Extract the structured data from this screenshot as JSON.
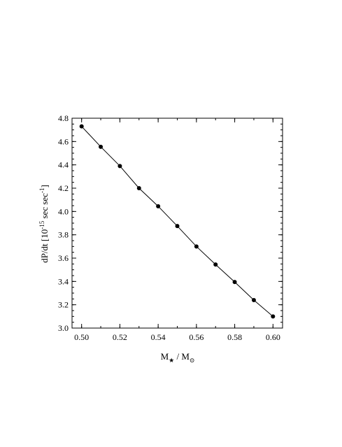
{
  "chart_data": {
    "type": "line",
    "x": [
      0.5,
      0.51,
      0.52,
      0.53,
      0.54,
      0.55,
      0.56,
      0.57,
      0.58,
      0.59,
      0.6
    ],
    "series": [
      {
        "values": [
          4.73,
          4.555,
          4.39,
          4.2,
          4.045,
          3.875,
          3.7,
          3.545,
          3.395,
          3.24,
          3.1
        ]
      }
    ],
    "xlim": [
      0.495,
      0.605
    ],
    "ylim": [
      3.0,
      4.8
    ],
    "xticks": [
      0.5,
      0.52,
      0.54,
      0.56,
      0.58,
      0.6
    ],
    "xtick_labels": [
      "0.50",
      "0.52",
      "0.54",
      "0.56",
      "0.58",
      "0.60"
    ],
    "xminor_step": 0.01,
    "yticks": [
      3.0,
      3.2,
      3.4,
      3.6,
      3.8,
      4.0,
      4.2,
      4.4,
      4.6,
      4.8
    ],
    "ytick_labels": [
      "3.0",
      "3.2",
      "3.4",
      "3.6",
      "3.8",
      "4.0",
      "4.2",
      "4.4",
      "4.6",
      "4.8"
    ],
    "yminor_step": 0.05,
    "xlabel": {
      "base": "M",
      "sub1": "★",
      "slash": " / M",
      "sub2": "⊙"
    },
    "ylabel": {
      "base": "dP/dt  [10",
      "exp1": "-15",
      "mid": " sec sec",
      "exp2": "-1",
      "end": "]"
    },
    "grid": false,
    "legend": "none",
    "color": "#000000"
  }
}
